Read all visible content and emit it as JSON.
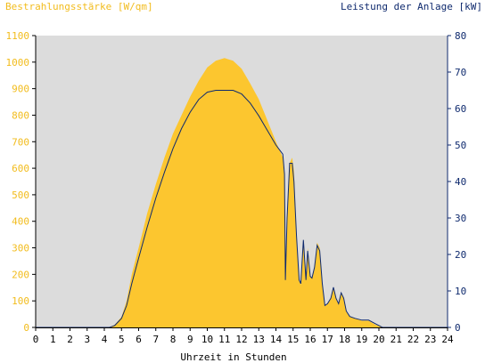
{
  "chart_data": {
    "type": "area",
    "title_left": "Bestrahlungsstärke [W/qm]",
    "title_right": "Leistung der Anlage [kW]",
    "xlabel": "Uhrzeit in Stunden",
    "xlim": [
      0,
      24
    ],
    "x_ticks": [
      "0",
      "1",
      "2",
      "3",
      "4",
      "5",
      "6",
      "7",
      "8",
      "9",
      "10",
      "11",
      "12",
      "13",
      "14",
      "15",
      "16",
      "17",
      "18",
      "19",
      "20",
      "21",
      "22",
      "23",
      "24"
    ],
    "y_left_lim": [
      0,
      1100
    ],
    "y_left_ticks": [
      "0",
      "100",
      "200",
      "300",
      "400",
      "500",
      "600",
      "700",
      "800",
      "900",
      "1000",
      "1100"
    ],
    "y_right_lim": [
      0,
      80
    ],
    "y_right_ticks": [
      "0",
      "10",
      "20",
      "30",
      "40",
      "50",
      "60",
      "70",
      "80"
    ],
    "grid": false,
    "colors": {
      "irradiance": "#fcc62f",
      "power": "#0f2a6e",
      "plot_bg": "#dcdcdc",
      "left_axis_text": "#f2bc1d",
      "right_axis_text": "#0f2a6e"
    },
    "series": [
      {
        "name": "Bestrahlungsstärke",
        "axis": "left",
        "kind": "area",
        "x": [
          4.3,
          4.6,
          5.0,
          5.3,
          5.6,
          6.0,
          6.5,
          7.0,
          7.5,
          8.0,
          8.5,
          9.0,
          9.5,
          10.0,
          10.5,
          11.0,
          11.5,
          12.0,
          12.5,
          13.0,
          13.5,
          14.0,
          14.4,
          14.5,
          14.55,
          14.65,
          14.8,
          14.95,
          15.05,
          15.2,
          15.35,
          15.45,
          15.6,
          15.75,
          15.85,
          16.0,
          16.1,
          16.25,
          16.4,
          16.55,
          16.7,
          16.85,
          17.0,
          17.2,
          17.35,
          17.5,
          17.65,
          17.8,
          17.95,
          18.1,
          18.3,
          18.6,
          19.0,
          19.4,
          19.8,
          20.2
        ],
        "y": [
          0,
          10,
          40,
          100,
          200,
          300,
          430,
          540,
          640,
          730,
          800,
          870,
          930,
          980,
          1005,
          1015,
          1005,
          975,
          920,
          860,
          780,
          700,
          640,
          560,
          200,
          420,
          620,
          640,
          590,
          350,
          180,
          160,
          330,
          180,
          300,
          190,
          190,
          230,
          320,
          300,
          160,
          80,
          90,
          110,
          150,
          110,
          90,
          130,
          110,
          60,
          40,
          35,
          25,
          25,
          10,
          0
        ]
      },
      {
        "name": "Leistung der Anlage",
        "axis": "right",
        "kind": "line",
        "x": [
          0.0,
          4.3,
          4.6,
          5.0,
          5.3,
          5.6,
          6.0,
          6.5,
          7.0,
          7.5,
          8.0,
          8.5,
          9.0,
          9.5,
          10.0,
          10.5,
          11.0,
          11.5,
          12.0,
          12.5,
          13.0,
          13.5,
          14.0,
          14.4,
          14.5,
          14.55,
          14.65,
          14.8,
          14.95,
          15.05,
          15.2,
          15.35,
          15.45,
          15.6,
          15.75,
          15.85,
          16.0,
          16.1,
          16.25,
          16.4,
          16.55,
          16.7,
          16.85,
          17.0,
          17.2,
          17.35,
          17.5,
          17.65,
          17.8,
          17.95,
          18.1,
          18.3,
          18.6,
          19.0,
          19.4,
          19.8,
          20.2,
          20.6,
          24.0
        ],
        "y": [
          0,
          0,
          0.5,
          2.5,
          6,
          12,
          19,
          27.5,
          35.5,
          42.5,
          49,
          54.5,
          59,
          62.5,
          64.5,
          65,
          65,
          65,
          64,
          61.5,
          58,
          54,
          50,
          47.5,
          42,
          13,
          30,
          45,
          45,
          40,
          25,
          13,
          12,
          24,
          13,
          21,
          14,
          13.5,
          16.5,
          22.5,
          21,
          12,
          6,
          6.5,
          8,
          11,
          8,
          6.5,
          9.5,
          8,
          4.5,
          3,
          2.5,
          2,
          2,
          1,
          0,
          0,
          0
        ]
      }
    ]
  }
}
